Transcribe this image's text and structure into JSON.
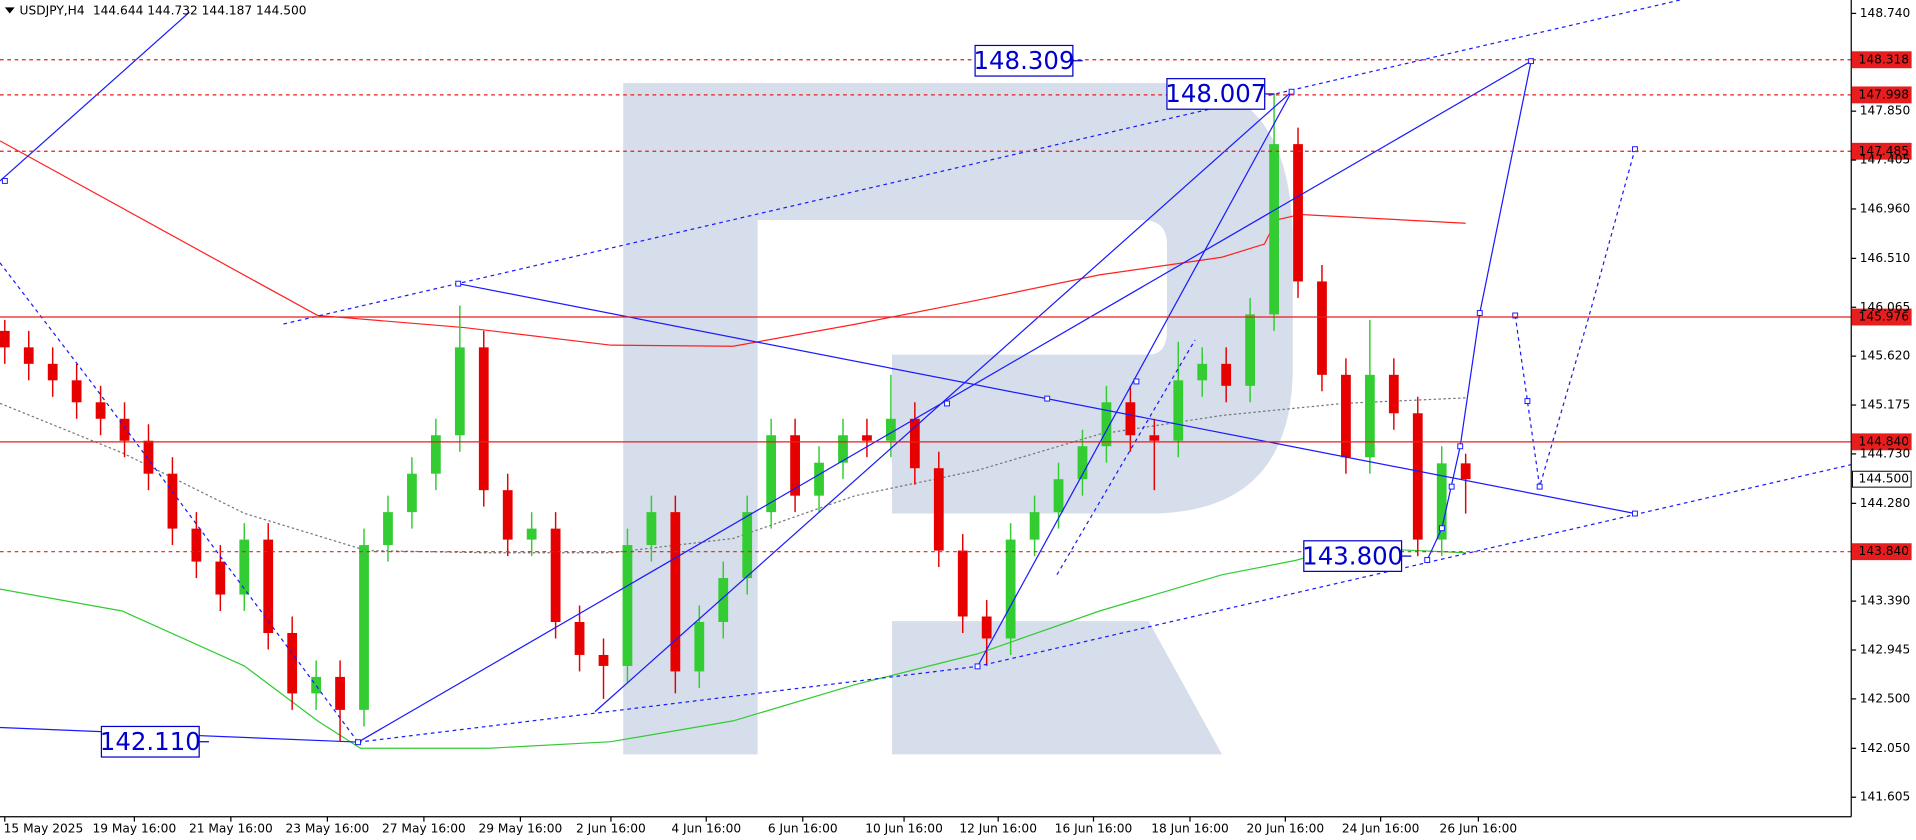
{
  "header": {
    "symbol": "USDJPY,H4",
    "quote": "144.644 144.732 144.187 144.500"
  },
  "chart_data": {
    "type": "candlestick",
    "up_color": "#33cc33",
    "down_color": "#e60000",
    "ohlc": [
      [
        145.85,
        145.95,
        145.55,
        145.7
      ],
      [
        145.7,
        145.85,
        145.4,
        145.55
      ],
      [
        145.55,
        145.7,
        145.25,
        145.4
      ],
      [
        145.4,
        145.55,
        145.05,
        145.2
      ],
      [
        145.2,
        145.35,
        144.9,
        145.05
      ],
      [
        145.05,
        145.2,
        144.7,
        144.85
      ],
      [
        144.85,
        145.0,
        144.4,
        144.55
      ],
      [
        144.55,
        144.7,
        143.9,
        144.05
      ],
      [
        144.05,
        144.2,
        143.6,
        143.75
      ],
      [
        143.75,
        143.9,
        143.3,
        143.45
      ],
      [
        143.45,
        144.1,
        143.3,
        143.95
      ],
      [
        143.95,
        144.1,
        142.95,
        143.1
      ],
      [
        143.1,
        143.25,
        142.4,
        142.55
      ],
      [
        142.55,
        142.85,
        142.4,
        142.7
      ],
      [
        142.7,
        142.85,
        142.11,
        142.4
      ],
      [
        142.4,
        144.05,
        142.25,
        143.9
      ],
      [
        143.9,
        144.35,
        143.75,
        144.2
      ],
      [
        144.2,
        144.7,
        144.05,
        144.55
      ],
      [
        144.55,
        145.05,
        144.4,
        144.9
      ],
      [
        144.9,
        146.08,
        144.75,
        145.7
      ],
      [
        145.7,
        145.85,
        144.25,
        144.4
      ],
      [
        144.4,
        144.55,
        143.8,
        143.95
      ],
      [
        143.95,
        144.2,
        143.8,
        144.05
      ],
      [
        144.05,
        144.2,
        143.05,
        143.2
      ],
      [
        143.2,
        143.35,
        142.75,
        142.9
      ],
      [
        142.9,
        143.05,
        142.5,
        142.8
      ],
      [
        142.8,
        144.05,
        142.65,
        143.9
      ],
      [
        143.9,
        144.35,
        143.75,
        144.2
      ],
      [
        144.2,
        144.35,
        142.55,
        142.75
      ],
      [
        142.75,
        143.35,
        142.6,
        143.2
      ],
      [
        143.2,
        143.75,
        143.05,
        143.6
      ],
      [
        143.6,
        144.35,
        143.45,
        144.2
      ],
      [
        144.2,
        145.05,
        144.05,
        144.9
      ],
      [
        144.9,
        145.05,
        144.2,
        144.35
      ],
      [
        144.35,
        144.8,
        144.2,
        144.65
      ],
      [
        144.65,
        145.05,
        144.5,
        144.9
      ],
      [
        144.9,
        145.05,
        144.7,
        144.85
      ],
      [
        144.85,
        145.45,
        144.7,
        145.05
      ],
      [
        145.05,
        145.2,
        144.45,
        144.6
      ],
      [
        144.6,
        144.75,
        143.7,
        143.85
      ],
      [
        143.85,
        144.0,
        143.1,
        143.25
      ],
      [
        143.25,
        143.4,
        142.8,
        143.05
      ],
      [
        143.05,
        144.1,
        142.9,
        143.95
      ],
      [
        143.95,
        144.35,
        143.8,
        144.2
      ],
      [
        144.2,
        144.65,
        144.05,
        144.5
      ],
      [
        144.5,
        144.95,
        144.35,
        144.8
      ],
      [
        144.8,
        145.35,
        144.65,
        145.2
      ],
      [
        145.2,
        145.35,
        144.75,
        144.9
      ],
      [
        144.9,
        145.05,
        144.4,
        144.85
      ],
      [
        144.85,
        145.75,
        144.7,
        145.4
      ],
      [
        145.4,
        145.7,
        145.25,
        145.55
      ],
      [
        145.55,
        145.7,
        145.2,
        145.35
      ],
      [
        145.35,
        146.15,
        145.2,
        146.0
      ],
      [
        146.0,
        148.007,
        145.85,
        147.55
      ],
      [
        147.55,
        147.7,
        146.15,
        146.3
      ],
      [
        146.3,
        146.45,
        145.3,
        145.45
      ],
      [
        145.45,
        145.6,
        144.55,
        144.7
      ],
      [
        144.7,
        145.95,
        144.55,
        145.45
      ],
      [
        145.45,
        145.6,
        144.95,
        145.1
      ],
      [
        145.1,
        145.25,
        143.8,
        143.95
      ],
      [
        143.95,
        144.8,
        143.8,
        144.644
      ],
      [
        144.644,
        144.732,
        144.187,
        144.5
      ]
    ],
    "overlays": [
      {
        "color": "#ff2020",
        "style": "solid",
        "x": [
          -0.2,
          13.06,
          19.18,
          25.31,
          30.41,
          35.51,
          40.61,
          45.71,
          50.82,
          52.6,
          53.1,
          54.1,
          61.0
        ],
        "values": [
          147.58,
          145.99,
          145.88,
          145.72,
          145.71,
          145.91,
          146.13,
          146.36,
          146.52,
          146.64,
          146.86,
          146.91,
          146.83
        ]
      },
      {
        "color": "#33cc33",
        "style": "solid",
        "x": [
          -0.2,
          4.9,
          10.0,
          13.06,
          14.85,
          20.2,
          25.31,
          30.41,
          35.51,
          40.61,
          45.71,
          50.82,
          53.88,
          55.92,
          61.0
        ],
        "values": [
          143.5,
          143.3,
          142.8,
          142.3,
          142.05,
          142.05,
          142.11,
          142.3,
          142.63,
          142.91,
          143.3,
          143.63,
          143.76,
          143.88,
          143.83
        ]
      },
      {
        "color": "#777777",
        "style": "dotted",
        "x": [
          -0.2,
          4.9,
          10.0,
          15.1,
          20.2,
          25.31,
          30.41,
          35.51,
          40.61,
          45.71,
          50.82,
          55.92,
          61.0
        ],
        "values": [
          145.19,
          144.74,
          144.19,
          143.85,
          143.83,
          143.83,
          143.96,
          144.35,
          144.58,
          144.91,
          145.08,
          145.19,
          145.24
        ]
      }
    ],
    "ylim": [
      141.427,
      148.862
    ],
    "yticks": [
      {
        "value": 148.74,
        "label": "148.740"
      },
      {
        "value": 147.85,
        "label": "147.850"
      },
      147.405,
      {
        "value": 146.96,
        "label": "146.960"
      },
      {
        "value": 146.51,
        "label": "146.510"
      },
      146.065,
      {
        "value": 145.62,
        "label": "145.620"
      },
      145.175,
      {
        "value": 144.73,
        "label": "144.730"
      },
      {
        "value": 144.28,
        "label": "144.280"
      },
      {
        "value": 143.39,
        "label": "143.390"
      },
      142.945,
      {
        "value": 142.5,
        "label": "142.500"
      },
      {
        "value": 142.05,
        "label": "142.050"
      },
      141.605
    ],
    "xlim": [
      -0.2,
      77.1
    ],
    "xticks": [
      {
        "value": 0,
        "label": "15 May 2025"
      },
      {
        "value": 5.41,
        "label": "19 May 16:00"
      },
      {
        "value": 9.44,
        "label": "21 May 16:00"
      },
      {
        "value": 13.47,
        "label": "23 May 16:00"
      },
      {
        "value": 17.5,
        "label": "27 May 16:00"
      },
      {
        "value": 21.53,
        "label": "29 May 16:00"
      },
      {
        "value": 25.31,
        "label": "2 Jun 16:00"
      },
      {
        "value": 29.29,
        "label": "4 Jun 16:00"
      },
      {
        "value": 33.32,
        "label": "6 Jun 16:00"
      },
      {
        "value": 37.55,
        "label": "10 Jun 16:00"
      },
      {
        "value": 41.48,
        "label": "12 Jun 16:00"
      },
      {
        "value": 45.46,
        "label": "16 Jun 16:00"
      },
      {
        "value": 49.49,
        "label": "18 Jun 16:00"
      },
      {
        "value": 53.47,
        "label": "20 Jun 16:00"
      },
      {
        "value": 57.45,
        "label": "24 Jun 16:00"
      },
      {
        "value": 61.53,
        "label": "26 Jun 16:00"
      }
    ],
    "levels": [
      {
        "value": 148.318,
        "style": "dashed",
        "color": "#e81d1d"
      },
      {
        "value": 147.998,
        "style": "dashed",
        "color": "#e81d1d"
      },
      {
        "value": 147.485,
        "style": "dashed",
        "color": "#e81d1d"
      },
      {
        "value": 145.976,
        "style": "solid",
        "color": "#e81d1d"
      },
      {
        "value": 144.84,
        "label": "144.840",
        "style": "solid",
        "color": "#e81d1d"
      },
      {
        "value": 144.5,
        "label": "144.500",
        "style": "none",
        "color": "#000000"
      },
      {
        "value": 143.84,
        "label": "143.840",
        "style": "dashed",
        "color": "#e81d1d"
      }
    ],
    "annotations": [
      {
        "value": 148.309
      },
      {
        "value": 148.007
      },
      {
        "value": 143.8,
        "label": "143.800"
      },
      {
        "value": 142.11,
        "label": "142.110"
      }
    ],
    "annotation_color": "#0000cc"
  }
}
